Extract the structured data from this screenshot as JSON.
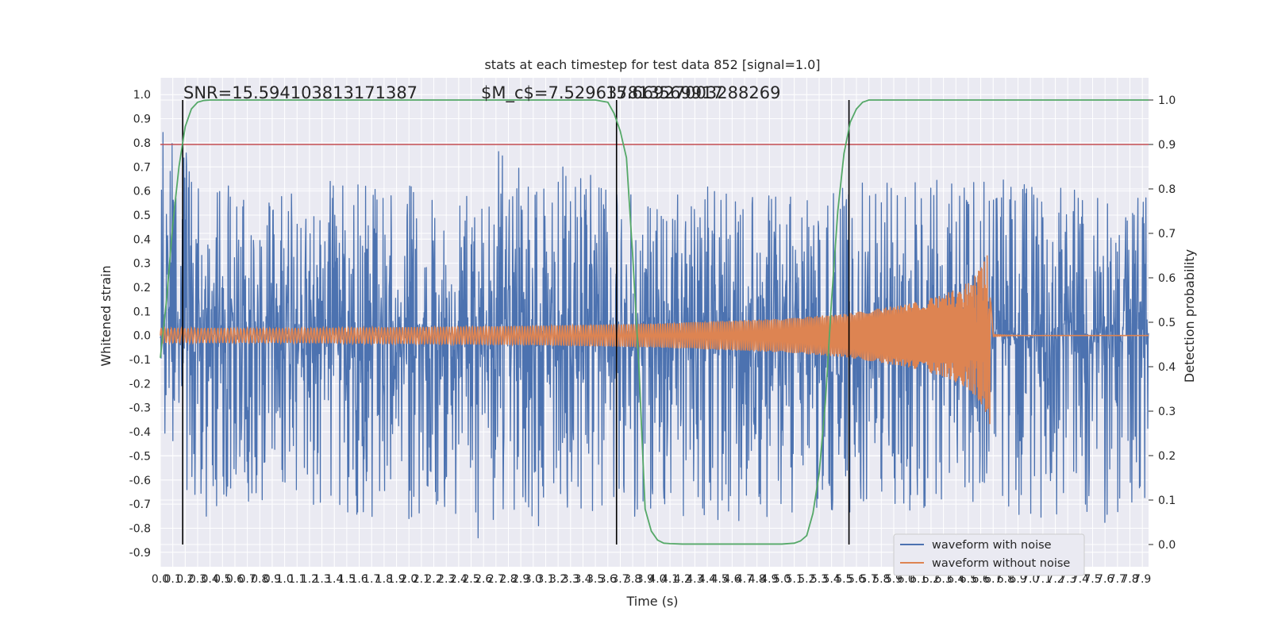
{
  "chart_data": {
    "type": "line",
    "title": "stats at each timestep for test data 852 [signal=1.0]",
    "xlabel": "Time (s)",
    "ylabel": "Whitened strain",
    "y2label": "Detection probability",
    "xlim": [
      0.0,
      7.95
    ],
    "ylim": [
      -0.96,
      1.07
    ],
    "y2lim": [
      -0.05,
      1.05
    ],
    "x_ticks": [
      0.0,
      0.1,
      0.2,
      0.3,
      0.4,
      0.5,
      0.6,
      0.7,
      0.8,
      0.9,
      1.0,
      1.1,
      1.2,
      1.3,
      1.4,
      1.5,
      1.6,
      1.7,
      1.8,
      1.9,
      2.0,
      2.1,
      2.2,
      2.3,
      2.4,
      2.5,
      2.6,
      2.7,
      2.8,
      2.9,
      3.0,
      3.1,
      3.2,
      3.3,
      3.4,
      3.5,
      3.6,
      3.7,
      3.8,
      3.9,
      4.0,
      4.1,
      4.2,
      4.3,
      4.4,
      4.5,
      4.6,
      4.7,
      4.8,
      4.9,
      5.0,
      5.1,
      5.2,
      5.3,
      5.4,
      5.5,
      5.6,
      5.7,
      5.8,
      5.9,
      6.0,
      6.1,
      6.2,
      6.3,
      6.4,
      6.5,
      6.6,
      6.7,
      6.8,
      6.9,
      7.0,
      7.1,
      7.2,
      7.3,
      7.4,
      7.5,
      7.6,
      7.7,
      7.8,
      7.9
    ],
    "y_ticks": [
      -0.9,
      -0.8,
      -0.7,
      -0.6,
      -0.5,
      -0.4,
      -0.3,
      -0.2,
      -0.1,
      0.0,
      0.1,
      0.2,
      0.3,
      0.4,
      0.5,
      0.6,
      0.7,
      0.8,
      0.9,
      1.0
    ],
    "y2_ticks": [
      0.0,
      0.1,
      0.2,
      0.3,
      0.4,
      0.5,
      0.6,
      0.7,
      0.8,
      0.9,
      1.0
    ],
    "grid": true,
    "legend": {
      "placement": "lower-right",
      "entries": [
        "waveform with noise",
        "waveform without noise"
      ]
    },
    "annotations": {
      "snr": "SNR=15.594103813171387",
      "mc": "$M_c$=7.529637813569917",
      "overlap": "15.66927003288269"
    },
    "threshold": {
      "axis": "y2",
      "value": 0.9,
      "color": "#c44e52"
    },
    "vlines_x": [
      0.18,
      3.67,
      5.54
    ],
    "series": [
      {
        "name": "waveform with noise",
        "color": "#4c72b0",
        "axis": "y",
        "envelope_x": [
          0.0,
          0.3,
          0.6,
          1.0,
          1.4,
          1.8,
          2.2,
          2.6,
          2.7,
          3.0,
          3.4,
          3.7,
          4.0,
          4.4,
          4.8,
          5.2,
          5.6,
          6.0,
          6.4,
          6.8,
          7.2,
          7.6,
          7.95
        ],
        "envelope_upper": [
          1.0,
          0.68,
          0.62,
          0.6,
          0.65,
          0.62,
          0.66,
          0.6,
          0.82,
          0.7,
          0.7,
          0.6,
          0.58,
          0.62,
          0.6,
          0.58,
          0.63,
          0.66,
          0.64,
          0.66,
          0.63,
          0.6,
          0.6
        ],
        "envelope_lower": [
          -0.4,
          -0.79,
          -0.7,
          -0.68,
          -0.72,
          -0.8,
          -0.72,
          -0.86,
          -0.74,
          -0.8,
          -0.72,
          -0.78,
          -0.76,
          -0.77,
          -0.77,
          -0.72,
          -0.74,
          -0.76,
          -0.72,
          -0.74,
          -0.78,
          -0.82,
          -0.7
        ]
      },
      {
        "name": "waveform without noise",
        "color": "#dd8452",
        "axis": "y",
        "envelope_x": [
          0.0,
          1.0,
          2.0,
          3.0,
          4.0,
          4.5,
          5.0,
          5.5,
          6.0,
          6.3,
          6.5,
          6.6,
          6.65,
          6.68,
          6.7,
          7.95
        ],
        "envelope_upper": [
          0.03,
          0.03,
          0.035,
          0.04,
          0.05,
          0.06,
          0.07,
          0.09,
          0.13,
          0.17,
          0.22,
          0.28,
          0.33,
          0.4,
          0.01,
          0.0
        ],
        "envelope_lower": [
          -0.03,
          -0.03,
          -0.035,
          -0.04,
          -0.05,
          -0.06,
          -0.07,
          -0.09,
          -0.13,
          -0.17,
          -0.22,
          -0.28,
          -0.33,
          -0.41,
          -0.01,
          0.0
        ]
      },
      {
        "name": "detection probability",
        "color": "#55a868",
        "axis": "y2",
        "x": [
          0.0,
          0.05,
          0.1,
          0.15,
          0.2,
          0.25,
          0.3,
          0.35,
          0.4,
          0.5,
          0.6,
          0.8,
          1.0,
          2.0,
          3.0,
          3.4,
          3.5,
          3.6,
          3.65,
          3.7,
          3.75,
          3.8,
          3.85,
          3.9,
          3.95,
          4.0,
          4.05,
          4.1,
          4.2,
          4.4,
          5.0,
          5.1,
          5.15,
          5.2,
          5.25,
          5.3,
          5.35,
          5.4,
          5.45,
          5.5,
          5.55,
          5.6,
          5.65,
          5.7,
          5.8,
          6.0,
          7.0,
          7.95
        ],
        "y": [
          0.42,
          0.55,
          0.72,
          0.85,
          0.94,
          0.98,
          0.995,
          0.999,
          1.0,
          1.0,
          1.0,
          1.0,
          1.0,
          1.0,
          1.0,
          1.0,
          1.0,
          0.995,
          0.97,
          0.93,
          0.87,
          0.65,
          0.4,
          0.08,
          0.03,
          0.01,
          0.003,
          0.002,
          0.001,
          0.001,
          0.001,
          0.003,
          0.008,
          0.02,
          0.07,
          0.16,
          0.32,
          0.55,
          0.75,
          0.88,
          0.95,
          0.98,
          0.995,
          1.0,
          1.0,
          1.0,
          1.0,
          1.0
        ]
      }
    ]
  }
}
